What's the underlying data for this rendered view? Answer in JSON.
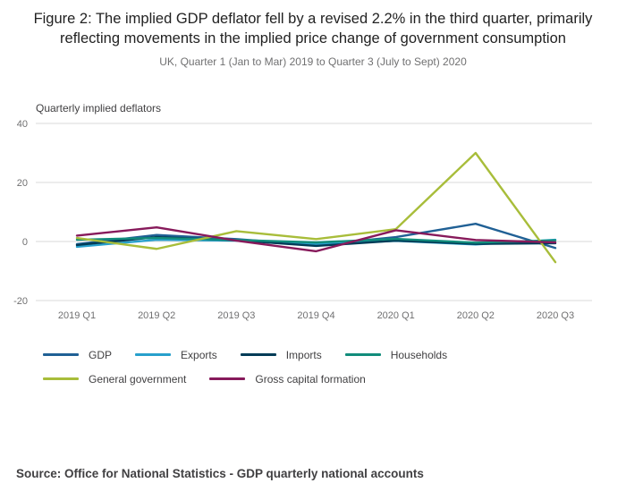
{
  "header": {
    "title": "Figure 2: The implied GDP deflator fell by a revised 2.2% in the third quarter, primarily reflecting movements in the implied price change of government consumption",
    "subtitle": "UK, Quarter 1 (Jan to Mar) 2019 to Quarter 3 (July to Sept) 2020"
  },
  "chart_data": {
    "type": "line",
    "title": "",
    "xlabel": "",
    "ylabel": "Quarterly implied deflators",
    "ylim": [
      -20,
      40
    ],
    "yticks": [
      40,
      20,
      0,
      -20
    ],
    "grid": true,
    "legend_position": "bottom",
    "categories": [
      "2019 Q1",
      "2019 Q2",
      "2019 Q3",
      "2019 Q4",
      "2020 Q1",
      "2020 Q2",
      "2020 Q3"
    ],
    "series": [
      {
        "name": "GDP",
        "color": "#206095",
        "values": [
          -0.9,
          2.2,
          0.8,
          -1.2,
          1.5,
          6.0,
          -2.2
        ]
      },
      {
        "name": "Exports",
        "color": "#27a0cc",
        "values": [
          -1.8,
          0.6,
          0.3,
          -0.9,
          0.2,
          -1.0,
          0.6
        ]
      },
      {
        "name": "Imports",
        "color": "#003c57",
        "values": [
          -1.2,
          1.5,
          0.4,
          -1.5,
          0.3,
          -0.8,
          -0.6
        ]
      },
      {
        "name": "Households",
        "color": "#118c7b",
        "values": [
          0.6,
          1.2,
          0.5,
          -0.3,
          0.9,
          -0.4,
          0.4
        ]
      },
      {
        "name": "General government",
        "color": "#a8bd3a",
        "values": [
          1.2,
          -2.5,
          3.5,
          0.8,
          4.2,
          30.0,
          -7.0
        ]
      },
      {
        "name": "Gross capital formation",
        "color": "#871a5b",
        "values": [
          2.0,
          4.8,
          0.3,
          -3.3,
          3.8,
          0.5,
          -0.3
        ]
      }
    ]
  },
  "source": "Source: Office for National Statistics - GDP quarterly national accounts",
  "colors": {
    "grid": "#d9d9d9",
    "axis_text": "#707071",
    "title_text": "#222222",
    "source_text": "#414042"
  }
}
